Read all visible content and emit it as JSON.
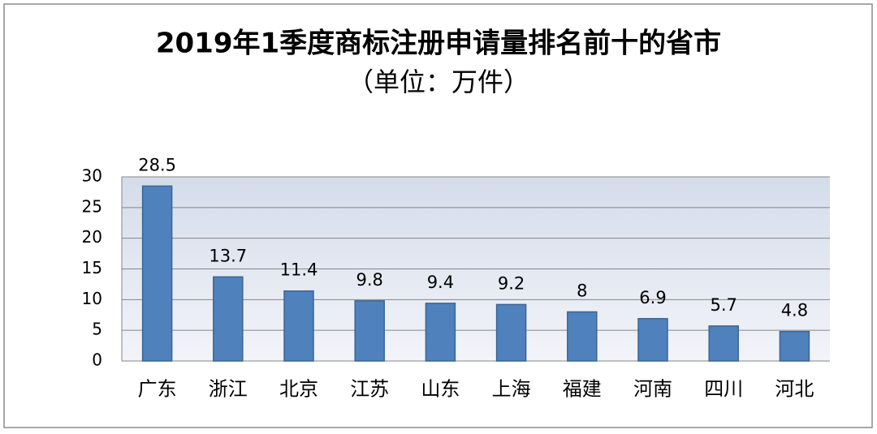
{
  "chart_data": {
    "type": "bar",
    "title": "2019年1季度商标注册申请量排名前十的省市",
    "subtitle": "（单位：万件）",
    "categories": [
      "广东",
      "浙江",
      "北京",
      "江苏",
      "山东",
      "上海",
      "福建",
      "河南",
      "四川",
      "河北"
    ],
    "values": [
      28.5,
      13.7,
      11.4,
      9.8,
      9.4,
      9.2,
      8,
      6.9,
      5.7,
      4.8
    ],
    "color": "#4f81bd",
    "ylim": [
      0,
      30
    ],
    "yticks": [
      0,
      5,
      10,
      15,
      20,
      25,
      30
    ],
    "grid": true
  }
}
